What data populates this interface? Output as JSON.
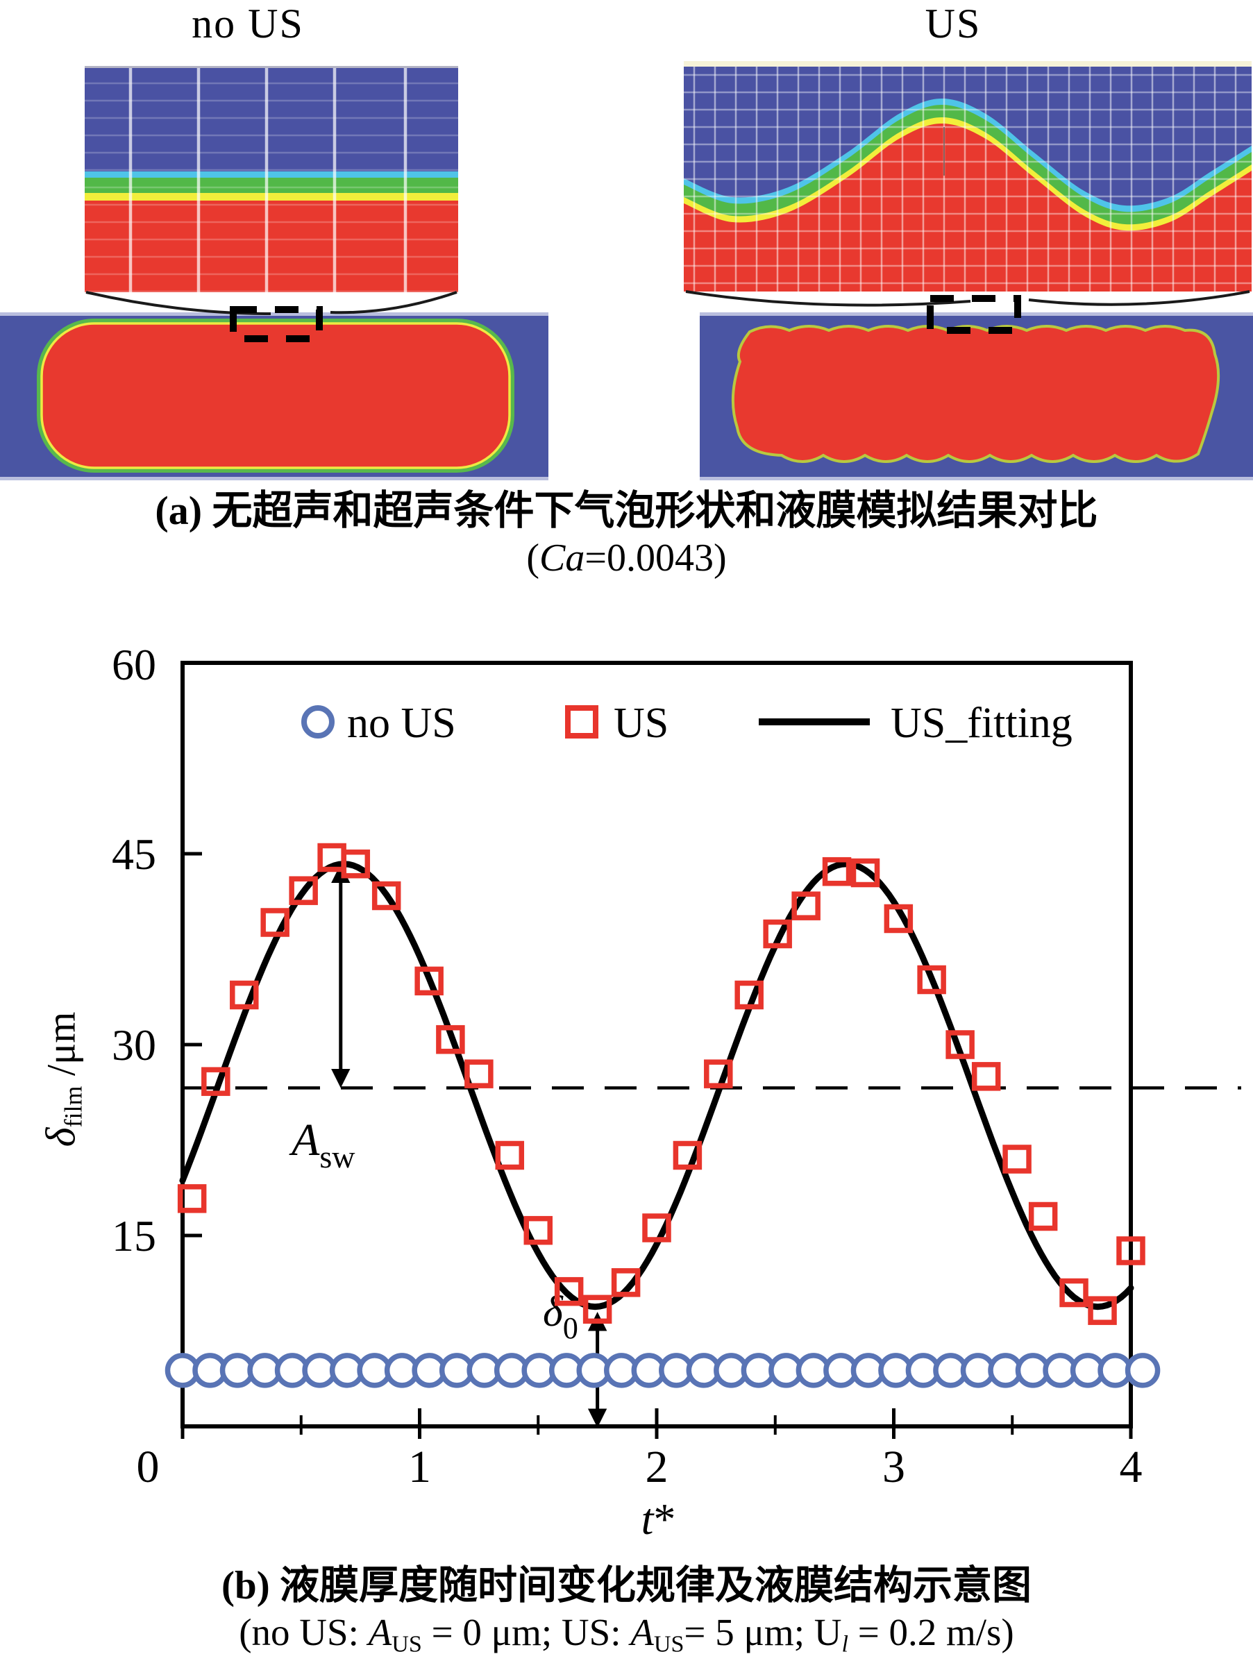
{
  "panel_a": {
    "left_title": "no US",
    "right_title": "US",
    "caption_line1": "(a) 无超声和超声条件下气泡形状和液膜模拟结果对比",
    "caption_line2_parts": [
      "(",
      "Ca",
      "=0.0043)"
    ]
  },
  "chart_data": {
    "type": "scatter+line",
    "title": "",
    "xlabel_parts": [
      "t",
      "*"
    ],
    "ylabel_parts": [
      "δ",
      "film",
      " /μm"
    ],
    "xlim": [
      0,
      4
    ],
    "ylim": [
      0,
      60
    ],
    "xticks_major": [
      0,
      1,
      2,
      3,
      4
    ],
    "xticks_minor": [
      0.5,
      1.5,
      2.5,
      3.5
    ],
    "yticks": [
      15,
      30,
      45
    ],
    "ytick_top": 60,
    "grid": false,
    "legend_position": "top-inside",
    "legend": [
      {
        "label": "no US",
        "marker": "circle",
        "color": "#5974b5"
      },
      {
        "label": "US",
        "marker": "square",
        "color": "#e8352c"
      },
      {
        "label": "US_fitting",
        "marker": "line",
        "color": "#000000"
      }
    ],
    "series_no_us": {
      "name": "no US",
      "constant_y": 4.4,
      "t_start": 0,
      "t_end": 4.05,
      "n_points": 36
    },
    "series_us_points": [
      [
        0.04,
        17.9
      ],
      [
        0.14,
        27.1
      ],
      [
        0.26,
        33.9
      ],
      [
        0.39,
        39.6
      ],
      [
        0.51,
        42.1
      ],
      [
        0.63,
        44.7
      ],
      [
        0.73,
        44.2
      ],
      [
        0.86,
        41.7
      ],
      [
        1.04,
        35.0
      ],
      [
        1.13,
        30.4
      ],
      [
        1.25,
        27.7
      ],
      [
        1.38,
        21.3
      ],
      [
        1.5,
        15.4
      ],
      [
        1.63,
        10.6
      ],
      [
        1.75,
        9.2
      ],
      [
        1.87,
        11.3
      ],
      [
        2.0,
        15.6
      ],
      [
        2.13,
        21.3
      ],
      [
        2.26,
        27.7
      ],
      [
        2.39,
        33.9
      ],
      [
        2.51,
        38.7
      ],
      [
        2.63,
        40.9
      ],
      [
        2.76,
        43.6
      ],
      [
        2.88,
        43.5
      ],
      [
        3.02,
        39.9
      ],
      [
        3.16,
        35.1
      ],
      [
        3.28,
        30.0
      ],
      [
        3.39,
        27.5
      ],
      [
        3.52,
        21.0
      ],
      [
        3.63,
        16.5
      ],
      [
        3.76,
        10.5
      ],
      [
        3.88,
        9.1
      ],
      [
        4.0,
        13.8
      ]
    ],
    "fit": {
      "name": "US_fitting",
      "model": "cosine",
      "mean": 26.8,
      "amplitude": 17.4,
      "period": 2.12,
      "peak_t": 0.68
    },
    "mean_dashed_line_y": 26.6,
    "annotations": {
      "a_sw": {
        "label_parts": [
          "A",
          "sw"
        ],
        "x": 0.667,
        "y_from": 43.9,
        "y_to": 26.9
      },
      "delta0": {
        "label_parts": [
          "δ",
          "0"
        ],
        "x": 1.75,
        "y_from": 8.7,
        "y_to": 0.2
      }
    }
  },
  "panel_b": {
    "caption_line1": "(b) 液膜厚度随时间变化规律及液膜结构示意图",
    "formula_parts": [
      "(no US: ",
      "A",
      "US",
      " = 0 μm; US: ",
      "A",
      "US",
      "= 5 μm; U",
      "l",
      " = 0.2 m/s)"
    ]
  },
  "colors": {
    "sim_blue": "#4a52a3",
    "sim_red": "#e8392f",
    "band_cyan": "#4fc4e8",
    "band_green": "#52b848",
    "band_yellow": "#f2ee3b",
    "grid_line": "#ffffff",
    "top_gray": "#b4b4c4",
    "cream": "#f6f2d8",
    "strip_blue": "#4a55a3",
    "strip_edge": "#b9bede",
    "bubble_edge_green": "#58b84c",
    "bubble_edge_yellow": "#eeea42",
    "marker_blue": "#5974b5",
    "marker_red": "#e8352c",
    "curve_black": "#000000",
    "callout_black": "#1a1a1a"
  }
}
